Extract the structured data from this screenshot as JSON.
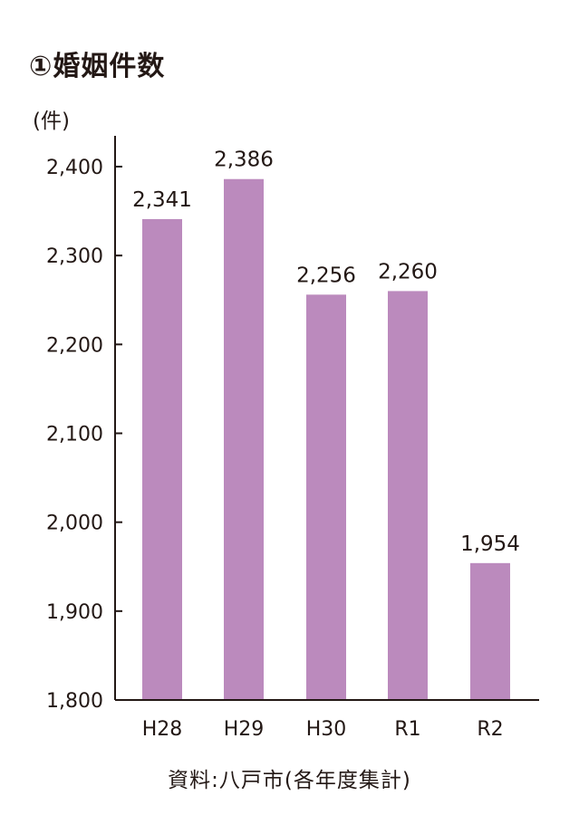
{
  "chart_data": {
    "type": "bar",
    "title": "①婚姻件数",
    "unit_label": "(件)",
    "categories": [
      "H28",
      "H29",
      "H30",
      "R1",
      "R2"
    ],
    "values": [
      2341,
      2386,
      2256,
      2260,
      1954
    ],
    "value_labels": [
      "2,341",
      "2,386",
      "2,256",
      "2,260",
      "1,954"
    ],
    "yticks": [
      1800,
      1900,
      2000,
      2100,
      2200,
      2300,
      2400
    ],
    "ytick_labels": [
      "1,800",
      "1,900",
      "2,000",
      "2,100",
      "2,200",
      "2,300",
      "2,400"
    ],
    "ylim": [
      1800,
      2400
    ],
    "bar_color": "#bb8abd",
    "axis_color": "#231815",
    "grid": false,
    "legend": "none",
    "source": "資料:八戸市(各年度集計)"
  }
}
